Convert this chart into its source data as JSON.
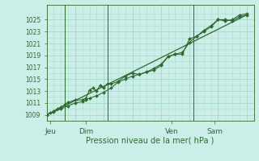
{
  "xlabel": "Pression niveau de la mer( hPa )",
  "bg_color": "#cceee8",
  "grid_color": "#aaddcc",
  "line_color": "#2d6a2d",
  "ylim": [
    1008.0,
    1027.5
  ],
  "xlim": [
    0,
    29
  ],
  "day_labels": [
    "Jeu",
    "Dim",
    "Ven",
    "Sam"
  ],
  "day_positions": [
    0.5,
    5.5,
    17.5,
    23.5
  ],
  "vline_positions": [
    2.5,
    8.5,
    20.5
  ],
  "yticks": [
    1009,
    1011,
    1013,
    1015,
    1017,
    1019,
    1021,
    1023,
    1025
  ],
  "yminor": [
    1010,
    1012,
    1014,
    1016,
    1018,
    1020,
    1022,
    1024,
    1026
  ],
  "line1_x": [
    0,
    0.5,
    1,
    1.5,
    2,
    2.5,
    3,
    4,
    5,
    5.5,
    6,
    6.5,
    7,
    7.5,
    8,
    8.5,
    9,
    10,
    11,
    12,
    13,
    14,
    15,
    16,
    17,
    18,
    19,
    20,
    21,
    22,
    23,
    24,
    25,
    26,
    27,
    28
  ],
  "line1_y": [
    1009.0,
    1009.3,
    1009.6,
    1010.0,
    1010.3,
    1010.7,
    1011.1,
    1011.5,
    1011.5,
    1011.8,
    1013.2,
    1013.5,
    1013.0,
    1014.0,
    1013.5,
    1014.2,
    1014.2,
    1014.6,
    1015.5,
    1016.0,
    1015.8,
    1016.2,
    1016.5,
    1017.3,
    1018.8,
    1019.2,
    1019.2,
    1021.8,
    1022.2,
    1023.0,
    1023.8,
    1025.0,
    1025.0,
    1024.8,
    1025.5,
    1025.8
  ],
  "line2_x": [
    0,
    1,
    2,
    3,
    4,
    5,
    5.5,
    6,
    7,
    8,
    9,
    10,
    11,
    12,
    13,
    14,
    15,
    16,
    17,
    18,
    19,
    20,
    21,
    22,
    23,
    24,
    25,
    26,
    27,
    28
  ],
  "line2_y": [
    1009.0,
    1009.5,
    1010.0,
    1010.5,
    1011.0,
    1011.2,
    1011.5,
    1011.8,
    1012.2,
    1012.8,
    1013.5,
    1014.5,
    1015.0,
    1015.5,
    1015.8,
    1016.2,
    1016.8,
    1017.5,
    1018.8,
    1019.2,
    1019.5,
    1021.2,
    1022.2,
    1023.2,
    1024.0,
    1025.0,
    1024.8,
    1025.0,
    1025.8,
    1026.0
  ],
  "trend_x": [
    0,
    28
  ],
  "trend_y": [
    1009.0,
    1025.8
  ]
}
